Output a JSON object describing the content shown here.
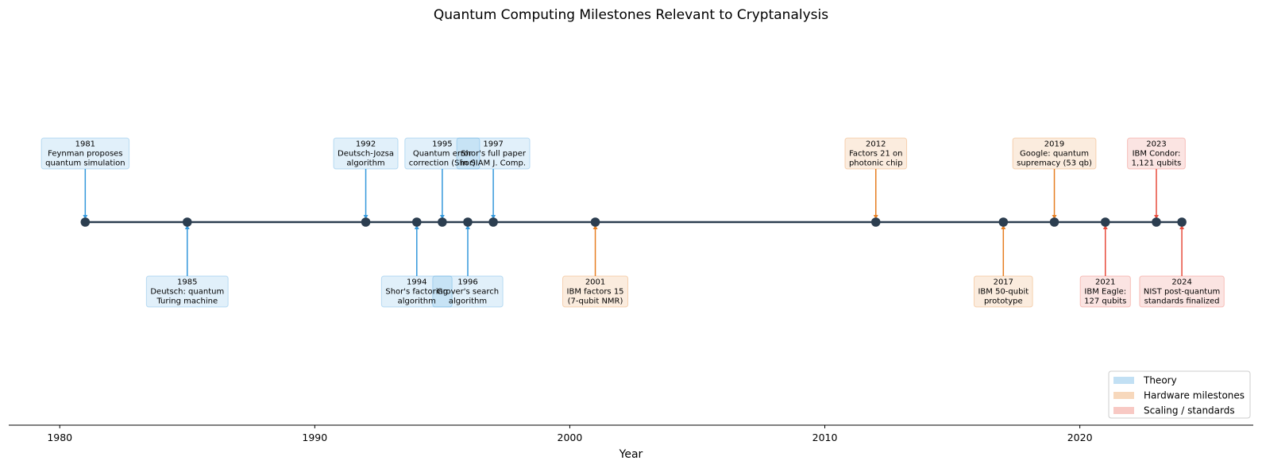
{
  "chart_data": {
    "type": "timeline",
    "title": "Quantum Computing Milestones Relevant to Cryptanalysis",
    "xlabel": "Year",
    "ylabel": "",
    "xlim": [
      1978,
      2026.8
    ],
    "xticks": [
      1980,
      1990,
      2000,
      2010,
      2020
    ],
    "grid": false,
    "legend_position": "bottom-right",
    "categories": {
      "theory": {
        "label": "Theory",
        "color": "#3498db"
      },
      "hardware": {
        "label": "Hardware milestones",
        "color": "#e67e22"
      },
      "scaling": {
        "label": "Scaling / standards",
        "color": "#e74c3c"
      }
    },
    "events": [
      {
        "year": 1981,
        "lines": [
          "1981",
          "Feynman proposes",
          "quantum simulation"
        ],
        "category": "theory",
        "side": "above"
      },
      {
        "year": 1985,
        "lines": [
          "1985",
          "Deutsch: quantum",
          "Turing machine"
        ],
        "category": "theory",
        "side": "below"
      },
      {
        "year": 1992,
        "lines": [
          "1992",
          "Deutsch-Jozsa",
          "algorithm"
        ],
        "category": "theory",
        "side": "above"
      },
      {
        "year": 1994,
        "lines": [
          "1994",
          "Shor's factoring",
          "algorithm"
        ],
        "category": "theory",
        "side": "below"
      },
      {
        "year": 1995,
        "lines": [
          "1995",
          "Quantum error",
          "correction (Shor)"
        ],
        "category": "theory",
        "side": "above"
      },
      {
        "year": 1996,
        "lines": [
          "1996",
          "Grover's search",
          "algorithm"
        ],
        "category": "theory",
        "side": "below"
      },
      {
        "year": 1997,
        "lines": [
          "1997",
          "Shor's full paper",
          "in SIAM J. Comp."
        ],
        "category": "theory",
        "side": "above"
      },
      {
        "year": 2001,
        "lines": [
          "2001",
          "IBM factors 15",
          "(7-qubit NMR)"
        ],
        "category": "hardware",
        "side": "below"
      },
      {
        "year": 2012,
        "lines": [
          "2012",
          "Factors 21 on",
          "photonic chip"
        ],
        "category": "hardware",
        "side": "above"
      },
      {
        "year": 2017,
        "lines": [
          "2017",
          "IBM 50-qubit",
          "prototype"
        ],
        "category": "hardware",
        "side": "below"
      },
      {
        "year": 2019,
        "lines": [
          "2019",
          "Google: quantum",
          "supremacy (53 qb)"
        ],
        "category": "hardware",
        "side": "above"
      },
      {
        "year": 2021,
        "lines": [
          "2021",
          "IBM Eagle:",
          "127 qubits"
        ],
        "category": "scaling",
        "side": "below"
      },
      {
        "year": 2023,
        "lines": [
          "2023",
          "IBM Condor:",
          "1,121 qubits"
        ],
        "category": "scaling",
        "side": "above"
      },
      {
        "year": 2024,
        "lines": [
          "2024",
          "NIST post-quantum",
          "standards finalized"
        ],
        "category": "scaling",
        "side": "below"
      }
    ]
  }
}
